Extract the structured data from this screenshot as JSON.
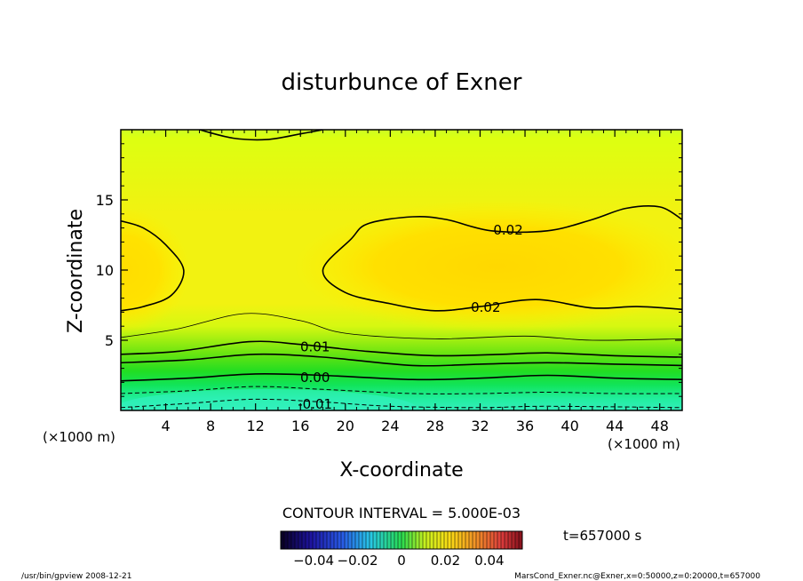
{
  "chart_data": {
    "type": "contour",
    "title": "disturbunce of Exner",
    "xlabel": "X-coordinate",
    "ylabel": "Z-coordinate",
    "x_unit_note": "(×1000 m)",
    "z_unit_note": "(×1000 m)",
    "xlim": [
      0,
      50
    ],
    "ylim": [
      0,
      20
    ],
    "x_ticks": [
      4,
      8,
      12,
      16,
      20,
      24,
      28,
      32,
      36,
      40,
      44,
      48
    ],
    "y_ticks": [
      5,
      10,
      15
    ],
    "contour_interval_text": "CONTOUR INTERVAL = 5.000E-03",
    "contour_labels": [
      {
        "text": "0.02",
        "x": 34.5,
        "z": 12.9
      },
      {
        "text": "0.02",
        "x": 32.5,
        "z": 7.4
      },
      {
        "text": "0.01",
        "x": 17.3,
        "z": 4.6
      },
      {
        "text": "0.00",
        "x": 17.3,
        "z": 2.4
      },
      {
        "text": "-0.01",
        "x": 17.3,
        "z": 0.5
      }
    ],
    "contour_lines": [
      {
        "level": 0.02,
        "style": "solid",
        "points": [
          [
            0,
            13.5
          ],
          [
            2,
            13.0
          ],
          [
            4,
            11.8
          ],
          [
            5.6,
            10
          ],
          [
            4.5,
            8.2
          ],
          [
            2,
            7.4
          ],
          [
            0,
            7.1
          ]
        ]
      },
      {
        "level": 0.02,
        "style": "solid",
        "points": [
          [
            50,
            13.6
          ],
          [
            48,
            14.5
          ],
          [
            45,
            14.4
          ],
          [
            42,
            13.6
          ],
          [
            38,
            12.8
          ],
          [
            33,
            12.8
          ],
          [
            29,
            13.6
          ],
          [
            26,
            13.8
          ],
          [
            22,
            13.3
          ],
          [
            20.5,
            12.2
          ],
          [
            18,
            10
          ],
          [
            20,
            8.4
          ],
          [
            24,
            7.6
          ],
          [
            28,
            7.1
          ],
          [
            32,
            7.4
          ],
          [
            37,
            7.9
          ],
          [
            42,
            7.3
          ],
          [
            46,
            7.4
          ],
          [
            50,
            7.2
          ]
        ]
      },
      {
        "level": 0.015,
        "style": "solid-thin",
        "points": [
          [
            0,
            5.2
          ],
          [
            5,
            5.8
          ],
          [
            11,
            6.9
          ],
          [
            16,
            6.4
          ],
          [
            20,
            5.5
          ],
          [
            28,
            5.1
          ],
          [
            36,
            5.3
          ],
          [
            42,
            5.0
          ],
          [
            50,
            5.1
          ]
        ]
      },
      {
        "level": 0.01,
        "style": "solid",
        "points": [
          [
            0,
            4.0
          ],
          [
            5,
            4.2
          ],
          [
            11.5,
            4.9
          ],
          [
            16,
            4.7
          ],
          [
            22,
            4.2
          ],
          [
            28,
            3.9
          ],
          [
            34,
            4.0
          ],
          [
            38,
            4.1
          ],
          [
            44,
            3.9
          ],
          [
            50,
            3.8
          ]
        ]
      },
      {
        "level": 0.005,
        "style": "solid",
        "points": [
          [
            0,
            3.4
          ],
          [
            6,
            3.6
          ],
          [
            12,
            4.0
          ],
          [
            18,
            3.8
          ],
          [
            26,
            3.2
          ],
          [
            32,
            3.3
          ],
          [
            38,
            3.4
          ],
          [
            44,
            3.3
          ],
          [
            50,
            3.2
          ]
        ]
      },
      {
        "level": 0.0,
        "style": "solid",
        "points": [
          [
            0,
            2.1
          ],
          [
            6,
            2.3
          ],
          [
            12,
            2.6
          ],
          [
            18,
            2.5
          ],
          [
            26,
            2.2
          ],
          [
            32,
            2.3
          ],
          [
            38,
            2.5
          ],
          [
            44,
            2.3
          ],
          [
            50,
            2.2
          ]
        ]
      },
      {
        "level": -0.005,
        "style": "dashed",
        "points": [
          [
            0,
            1.2
          ],
          [
            6,
            1.4
          ],
          [
            12,
            1.7
          ],
          [
            18,
            1.5
          ],
          [
            26,
            1.2
          ],
          [
            32,
            1.2
          ],
          [
            38,
            1.3
          ],
          [
            44,
            1.2
          ],
          [
            50,
            1.2
          ]
        ]
      },
      {
        "level": -0.01,
        "style": "dashed",
        "points": [
          [
            0,
            0.2
          ],
          [
            6,
            0.5
          ],
          [
            12,
            0.8
          ],
          [
            18,
            0.6
          ],
          [
            24,
            0.3
          ],
          [
            32,
            0.2
          ],
          [
            38,
            0.3
          ],
          [
            50,
            0.2
          ]
        ]
      },
      {
        "level": 0.015,
        "style": "solid",
        "points": [
          [
            7,
            20
          ],
          [
            10,
            19.4
          ],
          [
            13,
            19.3
          ],
          [
            16,
            19.7
          ],
          [
            18,
            20
          ]
        ]
      }
    ],
    "colorbar": {
      "ticks": [
        -0.04,
        -0.02,
        0,
        0.02,
        0.04
      ],
      "tick_labels": [
        "−0.04",
        "−0.02",
        "0",
        "0.02",
        "0.04"
      ],
      "range": [
        -0.055,
        0.055
      ]
    },
    "time_label": "t=657000 s",
    "colors": {
      "top_band": "#ddff11",
      "mid": "#f2f211",
      "core": "#ffdd00",
      "green": "#22ee22",
      "bottom": "#22eea0"
    }
  },
  "footer": {
    "left": "/usr/bin/gpview   2008-12-21",
    "right": "MarsCond_Exner.nc@Exner,x=0:50000,z=0:20000,t=657000"
  }
}
